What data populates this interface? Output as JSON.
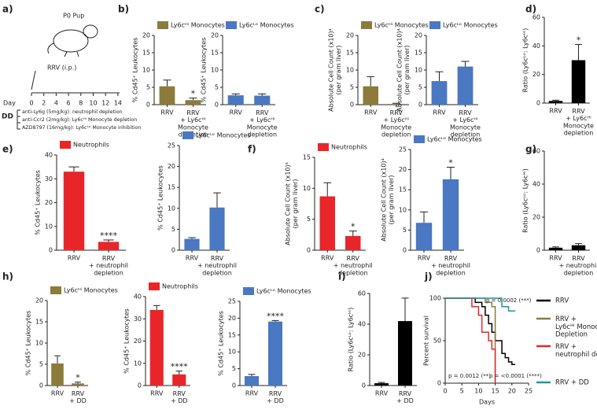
{
  "diagram": {
    "panel": "a)",
    "pup": "P0 Pup",
    "injection": "RRV (i.p.)",
    "day_label": "Day",
    "days": [
      0,
      2,
      4,
      6,
      8,
      10,
      12,
      14
    ],
    "dd": "DD",
    "treatments": [
      "anti-Ly6g (5mg/kg): neutrophil depletion",
      "anti-Ccr2 (2mg/kg): Ly6cᴴⁱ Monocyte depletion",
      "AZD8797 (16mg/kg): Ly6cᴸᵒ Monocyte inhibition"
    ]
  },
  "chart_data": [
    {
      "panel": "b)",
      "type": "bar",
      "ylabel": "% Cd45⁺ Leukocytes",
      "categories": [
        "RRV",
        "RRV\n+ Ly6cᴴⁱ\nMonocyte\ndepletion"
      ],
      "series": [
        {
          "name": "Ly6cᴴⁱ Monocytes",
          "color": "#8c7b3b",
          "values": [
            5.3,
            1.3
          ],
          "errors": [
            1.8,
            0.6
          ]
        }
      ],
      "annotations": [
        null,
        "*"
      ],
      "ylim": [
        0,
        20
      ],
      "yticks": [
        0,
        5,
        10,
        15,
        20
      ]
    },
    {
      "type": "bar",
      "ylabel": "% Cd45⁺ Leukocytes",
      "categories": [
        "RRV",
        "RRV\n+ Ly6cᴴⁱ\nMonocyte\ndepletion"
      ],
      "series": [
        {
          "name": "Ly6cᴸᵒ Monocytes",
          "color": "#4a78c2",
          "values": [
            2.7,
            2.6
          ],
          "errors": [
            0.4,
            0.5
          ]
        }
      ],
      "ylim": [
        0,
        20
      ],
      "yticks": [
        0,
        5,
        10,
        15,
        20
      ]
    },
    {
      "panel": "c)",
      "type": "bar",
      "ylabel": "Absolute Cell Count (x10)⁴\n(per gram liver)",
      "categories": [
        "RRV",
        "RRV\n+ Ly6cᴴⁱ\nMonocyte\ndepletion"
      ],
      "series": [
        {
          "name": "Ly6cᴴⁱ Monocytes",
          "color": "#8c7b3b",
          "values": [
            5.3,
            0.2
          ],
          "errors": [
            2.8,
            0.2
          ]
        }
      ],
      "ylim": [
        0,
        20
      ],
      "yticks": [
        0,
        5,
        10,
        15,
        20
      ]
    },
    {
      "type": "bar",
      "ylabel": "Absolute Cell Count (x10)⁴\n(per gram liver)",
      "categories": [
        "RRV",
        "RRV\n+ Ly6cᴴⁱ\nMonocyte\ndepletion"
      ],
      "series": [
        {
          "name": "Ly6cᴸᵒ Monocytes",
          "color": "#4a78c2",
          "values": [
            6.8,
            11
          ],
          "errors": [
            2.7,
            1.5
          ]
        }
      ],
      "ylim": [
        0,
        20
      ],
      "yticks": [
        0,
        5,
        10,
        15,
        20
      ]
    },
    {
      "panel": "d)",
      "type": "bar",
      "ylabel": "Ratio (Ly6cᴸᵒ: Ly6cᴴⁱ)",
      "categories": [
        "RRV",
        "RRV\n+ Ly6cᴴⁱ\nMonocyte\ndepletion"
      ],
      "series": [
        {
          "color": "#000000",
          "values": [
            1.5,
            30
          ],
          "errors": [
            0.5,
            11
          ]
        }
      ],
      "annotations": [
        null,
        "*"
      ],
      "ylim": [
        0,
        60
      ],
      "yticks": [
        0,
        20,
        40,
        60
      ]
    },
    {
      "panel": "e)",
      "type": "bar",
      "ylabel": "% Cd45⁺ Leukocytes",
      "categories": [
        "RRV",
        "RRV\n+ neutrophil\ndepletion"
      ],
      "series": [
        {
          "name": "Neutrophils",
          "color": "#e8262a",
          "values": [
            33,
            3.5
          ],
          "errors": [
            2,
            0.8
          ]
        }
      ],
      "annotations": [
        null,
        "****"
      ],
      "ylim": [
        0,
        40
      ],
      "yticks": [
        0,
        10,
        20,
        30,
        40
      ]
    },
    {
      "type": "bar",
      "ylabel": "% Cd45⁺ Leukocytes",
      "categories": [
        "RRV",
        "RRV\n+ neutrophil\ndepletion"
      ],
      "series": [
        {
          "name": "Ly6cᴸᵒ Monocytes",
          "color": "#4a78c2",
          "values": [
            2.7,
            10.2
          ],
          "errors": [
            0.3,
            3.5
          ]
        }
      ],
      "ylim": [
        0,
        25
      ],
      "yticks": [
        0,
        5,
        10,
        15,
        20,
        25
      ]
    },
    {
      "panel": "f)",
      "type": "bar",
      "ylabel": "Absolute Cell Count (x10)⁵\n(per gram liver)",
      "categories": [
        "RRV",
        "RRV\n+ neutrophil\ndepletion"
      ],
      "series": [
        {
          "name": "Neutrophils",
          "color": "#e8262a",
          "values": [
            8.7,
            2.3
          ],
          "errors": [
            2.2,
            0.8
          ]
        }
      ],
      "annotations": [
        null,
        "*"
      ],
      "ylim": [
        0,
        15
      ],
      "yticks": [
        0,
        5,
        10,
        15
      ]
    },
    {
      "type": "bar",
      "ylabel": "Absolute Cell Count (x10)⁴\n(per gram liver)",
      "categories": [
        "RRV",
        "RRV\n+ neutrophil\ndepletion"
      ],
      "series": [
        {
          "name": "Ly6cᴸᵒ Monocytes",
          "color": "#4a78c2",
          "values": [
            6.8,
            17.6
          ],
          "errors": [
            2.7,
            3
          ]
        }
      ],
      "annotations": [
        null,
        "*"
      ],
      "ylim": [
        0,
        25
      ],
      "yticks": [
        0,
        5,
        10,
        15,
        20,
        25
      ]
    },
    {
      "panel": "g)",
      "type": "bar",
      "ylabel": "Ratio (Ly6cᴸᵒ: Ly6cᴴⁱ)",
      "categories": [
        "RRV",
        "RRV\n+ neutrophil\ndepletion"
      ],
      "series": [
        {
          "color": "#000000",
          "values": [
            1.5,
            3
          ],
          "errors": [
            0.5,
            1
          ]
        }
      ],
      "ylim": [
        0,
        60
      ],
      "yticks": [
        0,
        20,
        40,
        60
      ]
    },
    {
      "panel": "h)",
      "type": "bar",
      "ylabel": "% Cd45⁺ Leukocytes",
      "categories": [
        "RRV",
        "RRV\n+ DD"
      ],
      "series": [
        {
          "name": "Ly6cᴴⁱ Monocytes",
          "color": "#8c7b3b",
          "values": [
            5.2,
            0.5
          ],
          "errors": [
            1.8,
            0.3
          ]
        }
      ],
      "annotations": [
        null,
        "*"
      ],
      "ylim": [
        0,
        20
      ],
      "yticks": [
        0,
        5,
        10,
        15,
        20
      ]
    },
    {
      "type": "bar",
      "ylabel": "% Cd45⁺ Leukocytes",
      "categories": [
        "RRV",
        "RRV\n+ DD"
      ],
      "series": [
        {
          "name": "Neutrophils",
          "color": "#e8262a",
          "values": [
            34,
            5
          ],
          "errors": [
            2,
            1.5
          ]
        }
      ],
      "annotations": [
        null,
        "****"
      ],
      "ylim": [
        0,
        40
      ],
      "yticks": [
        0,
        10,
        20,
        30,
        40
      ]
    },
    {
      "type": "bar",
      "ylabel": "% Cd45⁺ Leukocytes",
      "categories": [
        "RRV",
        "RRV\n+ DD"
      ],
      "series": [
        {
          "name": "Ly6cᴸᵒ Monocytes",
          "color": "#4a78c2",
          "values": [
            2.8,
            19
          ],
          "errors": [
            0.5,
            0.3
          ]
        }
      ],
      "annotations": [
        null,
        "****"
      ],
      "ylim": [
        0,
        25
      ],
      "yticks": [
        0,
        5,
        10,
        15,
        20,
        25
      ]
    },
    {
      "panel": "i)",
      "type": "bar",
      "ylabel": "Ratio (Ly6cᴸᵒ: Ly6cᴴⁱ)",
      "categories": [
        "RRV",
        "RRV\n+ DD"
      ],
      "series": [
        {
          "color": "#000000",
          "values": [
            1.5,
            42
          ],
          "errors": [
            0.5,
            15
          ]
        }
      ],
      "ylim": [
        0,
        60
      ],
      "yticks": [
        0,
        20,
        40,
        60
      ]
    },
    {
      "panel": "j)",
      "type": "line",
      "ylabel": "Percent survival",
      "xlabel": "Days",
      "xlim": [
        0,
        25
      ],
      "xticks": [
        0,
        5,
        10,
        15,
        20,
        25
      ],
      "ylim": [
        0,
        100
      ],
      "yticks": [
        0,
        50,
        100
      ],
      "series": [
        {
          "name": "RRV",
          "color": "#000000",
          "x": [
            0,
            9,
            9,
            11,
            11,
            12,
            12,
            13,
            13,
            14,
            14,
            15,
            15,
            17,
            17,
            18,
            18,
            19,
            19,
            20,
            20,
            21
          ],
          "y": [
            100,
            100,
            95,
            95,
            90,
            90,
            80,
            80,
            70,
            70,
            60,
            60,
            50,
            50,
            35,
            35,
            30,
            30,
            25,
            25,
            22,
            22
          ]
        },
        {
          "name": "RRV +\nLy6cᴴⁱ Monocyte\nDepletion",
          "color": "#8c7b3b",
          "x": [
            0,
            12,
            12,
            14,
            14,
            15,
            15
          ],
          "y": [
            100,
            100,
            95,
            95,
            90,
            90,
            0
          ]
        },
        {
          "name": "RRV +\nneutrophil depletion",
          "color": "#e8262a",
          "x": [
            0,
            8,
            8,
            10,
            10,
            11,
            11,
            13,
            13,
            14,
            14,
            15,
            15
          ],
          "y": [
            100,
            100,
            90,
            90,
            80,
            80,
            60,
            60,
            50,
            50,
            40,
            40,
            0
          ]
        },
        {
          "name": "RRV + DD",
          "color": "#1a9a9a",
          "x": [
            0,
            17,
            17,
            19,
            19,
            21
          ],
          "y": [
            100,
            100,
            90,
            90,
            85,
            85
          ]
        }
      ],
      "annotations": [
        "p = 0.0002 (***)",
        "p = 0.0012 (**)",
        "p = <0.0001 (****)"
      ]
    }
  ]
}
